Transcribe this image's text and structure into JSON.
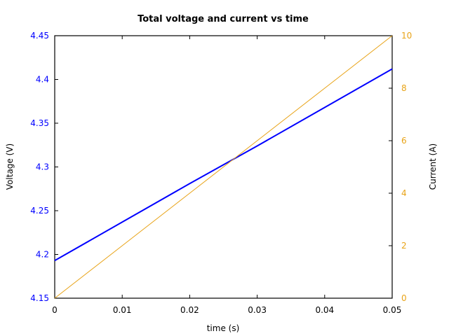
{
  "chart_data": {
    "type": "line",
    "title": "Total voltage and current vs time",
    "xlabel": "time (s)",
    "ylabel": "Voltage (V)",
    "y2label": "Current (A)",
    "xlim": [
      0,
      0.05
    ],
    "ylim": [
      4.15,
      4.45
    ],
    "y2lim": [
      0,
      10
    ],
    "x_ticks": [
      "0",
      "0.01",
      "0.02",
      "0.03",
      "0.04",
      "0.05"
    ],
    "y_ticks": [
      "4.15",
      "4.2",
      "4.25",
      "4.3",
      "4.35",
      "4.4",
      "4.45"
    ],
    "y2_ticks": [
      "0",
      "2",
      "4",
      "6",
      "8",
      "10"
    ],
    "grid": false,
    "legend": null,
    "series": [
      {
        "name": "Voltage",
        "axis": "left",
        "color": "#0000ff",
        "x": [
          0,
          0.01,
          0.02,
          0.03,
          0.04,
          0.05
        ],
        "values": [
          4.193,
          4.237,
          4.281,
          4.324,
          4.368,
          4.412
        ]
      },
      {
        "name": "Current",
        "axis": "right",
        "color": "#e8a317",
        "x": [
          0,
          0.01,
          0.02,
          0.03,
          0.04,
          0.05
        ],
        "values": [
          0,
          2,
          4,
          6,
          8,
          10
        ]
      }
    ]
  },
  "colors": {
    "voltage": "#0000ff",
    "current": "#e8a317",
    "axis": "#000000"
  }
}
